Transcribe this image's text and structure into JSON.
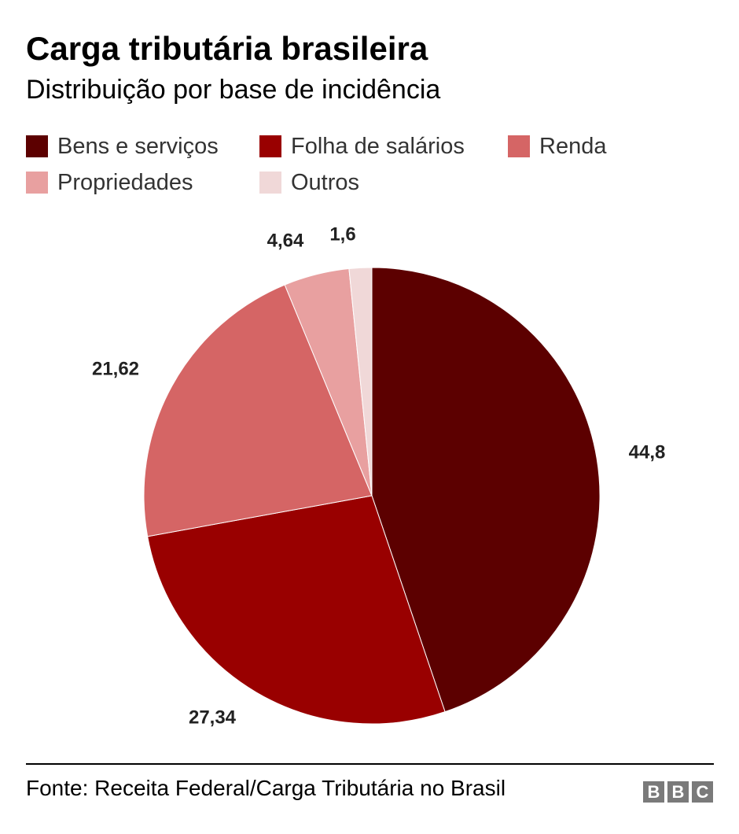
{
  "chart_data": {
    "type": "pie",
    "title": "Carga tributária brasileira",
    "subtitle": "Distribuição por base de incidência",
    "categories": [
      "Bens e serviços",
      "Folha de salários",
      "Renda",
      "Propriedades",
      "Outros"
    ],
    "values": [
      44.8,
      27.34,
      21.62,
      4.64,
      1.6
    ],
    "value_labels": [
      "44,8",
      "27,34",
      "21,62",
      "4,64",
      "1,6"
    ],
    "colors": [
      "#5c0000",
      "#990000",
      "#d56565",
      "#e8a0a0",
      "#f0d8d8"
    ],
    "legend_position": "top"
  },
  "footer": {
    "source": "Fonte: Receita Federal/Carga Tributária no Brasil",
    "logo_letters": [
      "B",
      "B",
      "C"
    ]
  }
}
